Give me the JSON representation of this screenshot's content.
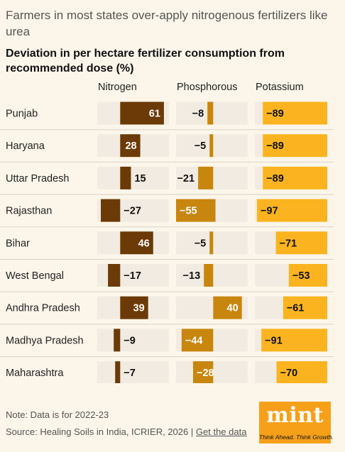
{
  "title": "Farmers in most states over-apply nitrogenous fertilizers like urea",
  "subtitle": "Deviation in per hectare fertilizer consumption from recommended dose (%)",
  "note": "Note: Data is for 2022-23",
  "source": {
    "text": "Source: Healing Soils in India, ICRIER, 2026",
    "separator": "|",
    "link_label": "Get the data"
  },
  "logo": {
    "word": "mint",
    "tagline": "Think Ahead. Think Growth."
  },
  "chart_data": {
    "type": "bar",
    "title": "Deviation in per hectare fertilizer consumption from recommended dose (%)",
    "categories": [
      "Punjab",
      "Haryana",
      "Uttar Pradesh",
      "Rajasthan",
      "Bihar",
      "West Bengal",
      "Andhra Pradesh",
      "Madhya Pradesh",
      "Maharashtra"
    ],
    "series": [
      {
        "name": "Nitrogen",
        "color": "#6b3a06",
        "values": [
          61,
          28,
          15,
          -27,
          46,
          -17,
          39,
          -9,
          -7
        ]
      },
      {
        "name": "Phosphorous",
        "color": "#c8860e",
        "values": [
          -8,
          -5,
          -21,
          -55,
          -5,
          -13,
          40,
          -44,
          -28
        ]
      },
      {
        "name": "Potassium",
        "color": "#fbb41f",
        "values": [
          -89,
          -89,
          -89,
          -97,
          -71,
          -53,
          -61,
          -91,
          -70
        ]
      }
    ],
    "colors": {
      "panel_background": "#f1ebe1",
      "row_divider": "#d9d2c6"
    }
  }
}
